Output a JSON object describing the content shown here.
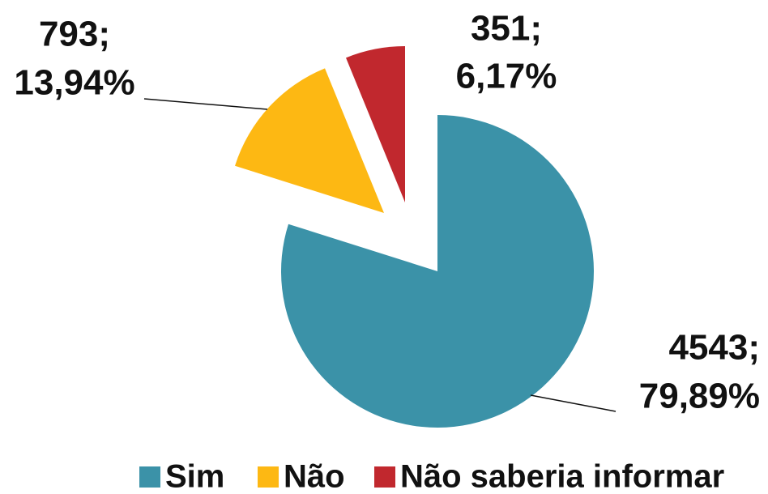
{
  "chart_data": {
    "type": "pie",
    "categories": [
      "Sim",
      "Não",
      "Não saberia informar"
    ],
    "values": [
      4543,
      793,
      351
    ],
    "value_labels": [
      [
        "4543;",
        "79,89%"
      ],
      [
        "793;",
        "13,94%"
      ],
      [
        "351;",
        "6,17%"
      ]
    ],
    "colors": [
      "#3b92a8",
      "#fdb813",
      "#c1282e"
    ],
    "legend": "bottom"
  }
}
